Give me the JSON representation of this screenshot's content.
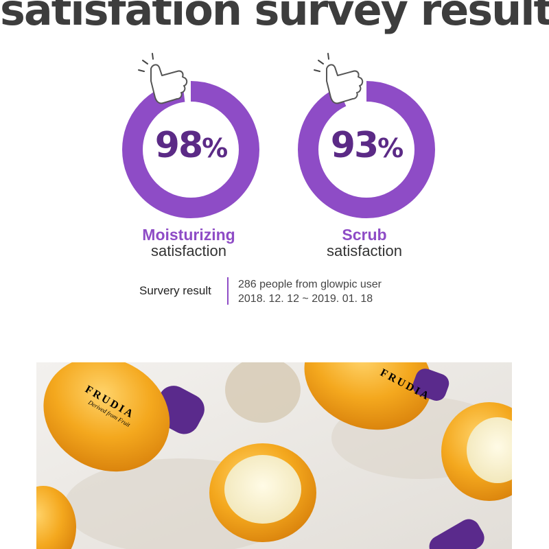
{
  "title": "satisfation survey result",
  "metrics": [
    {
      "value": "98",
      "unit": "%",
      "label_strong": "Moisturizing",
      "label_sub": "satisfaction",
      "fraction": 0.98
    },
    {
      "value": "93",
      "unit": "%",
      "label_strong": "Scrub",
      "label_sub": "satisfaction",
      "fraction": 0.93
    }
  ],
  "survey": {
    "label": "Survery result",
    "line1": "286 people from glowpic user",
    "line2": "2018. 12. 12 ~ 2019. 01. 18"
  },
  "product": {
    "brand": "FRUDIA",
    "tagline": "Derived from Fruit"
  },
  "colors": {
    "accent": "#8e4cc6",
    "number": "#5b2a86",
    "title": "#3d3d3d",
    "jar": "#f2a81d",
    "lid": "#5a2a8c"
  },
  "icons": [
    "thumbs-up-icon"
  ]
}
